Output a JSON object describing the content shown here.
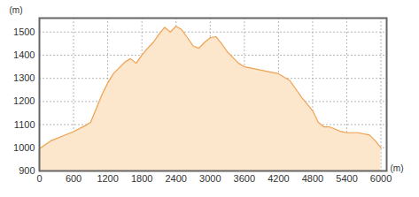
{
  "chart_data": {
    "type": "area",
    "x_label": "(m)",
    "y_label": "(m)",
    "x": [
      0,
      200,
      400,
      600,
      800,
      900,
      1000,
      1100,
      1200,
      1300,
      1400,
      1500,
      1600,
      1700,
      1800,
      1900,
      2000,
      2100,
      2200,
      2300,
      2400,
      2500,
      2600,
      2700,
      2800,
      2900,
      3000,
      3100,
      3200,
      3300,
      3400,
      3500,
      3600,
      3800,
      4000,
      4200,
      4400,
      4600,
      4800,
      4900,
      5000,
      5100,
      5200,
      5300,
      5400,
      5600,
      5800,
      5900,
      6000
    ],
    "values": [
      995,
      1030,
      1050,
      1070,
      1095,
      1110,
      1170,
      1230,
      1280,
      1320,
      1345,
      1370,
      1385,
      1365,
      1400,
      1430,
      1455,
      1490,
      1520,
      1500,
      1525,
      1510,
      1475,
      1440,
      1430,
      1455,
      1475,
      1480,
      1450,
      1415,
      1390,
      1365,
      1350,
      1340,
      1330,
      1320,
      1290,
      1220,
      1160,
      1110,
      1090,
      1090,
      1080,
      1070,
      1065,
      1065,
      1055,
      1030,
      1000
    ],
    "color": "#f0a254",
    "fill": "#fce6cc",
    "xlim": [
      0,
      6100
    ],
    "ylim": [
      900,
      1560
    ],
    "xticks": [
      0,
      600,
      1200,
      1800,
      2400,
      3000,
      3600,
      4200,
      4800,
      5400,
      6000
    ],
    "yticks": [
      900,
      1000,
      1100,
      1200,
      1300,
      1400,
      1500
    ],
    "grid": true
  }
}
